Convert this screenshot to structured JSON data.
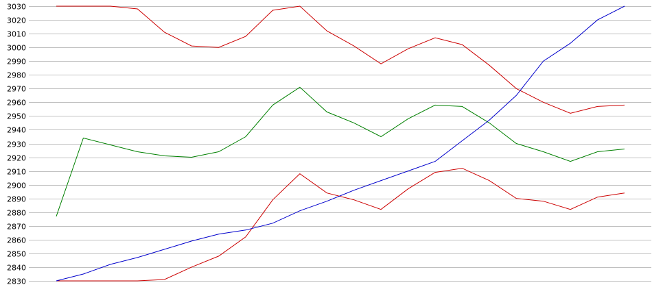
{
  "chart_data": {
    "type": "line",
    "grid": true,
    "legend": "none",
    "ylim": [
      2830,
      3030
    ],
    "y_ticks": [
      "3030",
      "3020",
      "3010",
      "3000",
      "2990",
      "2980",
      "2970",
      "2960",
      "2950",
      "2940",
      "2930",
      "2920",
      "2910",
      "2900",
      "2890",
      "2880",
      "2870",
      "2860",
      "2850",
      "2840",
      "2830"
    ],
    "x": [
      1,
      2,
      3,
      4,
      5,
      6,
      7,
      8,
      9,
      10,
      11,
      12,
      13,
      14,
      15,
      16,
      17,
      18,
      19,
      20,
      21,
      22
    ],
    "series": [
      {
        "color": "#cc0000",
        "values": [
          3030,
          3030,
          3030,
          3028,
          3011,
          3001,
          3000,
          3008,
          3027,
          3030,
          3012,
          3001,
          2988,
          2999,
          3007,
          3002,
          2987,
          2970,
          2960,
          2952,
          2957,
          2958
        ]
      },
      {
        "color": "#008000",
        "values": [
          2877,
          2934,
          2929,
          2924,
          2921,
          2920,
          2924,
          2935,
          2958,
          2971,
          2953,
          2945,
          2935,
          2948,
          2958,
          2957,
          2945,
          2930,
          2924,
          2917,
          2924,
          2926
        ]
      },
      {
        "color": "#cc0000",
        "values": [
          2830,
          2830,
          2830,
          2830,
          2831,
          2840,
          2848,
          2862,
          2889,
          2908,
          2894,
          2889,
          2882,
          2897,
          2909,
          2912,
          2903,
          2890,
          2888,
          2882,
          2891,
          2894
        ]
      },
      {
        "color": "#0000cc",
        "values": [
          2830,
          2835,
          2842,
          2847,
          2853,
          2859,
          2864,
          2867,
          2872,
          2881,
          2888,
          2896,
          2903,
          2910,
          2917,
          2932,
          2947,
          2965,
          2990,
          3003,
          3020,
          3030
        ]
      }
    ]
  }
}
